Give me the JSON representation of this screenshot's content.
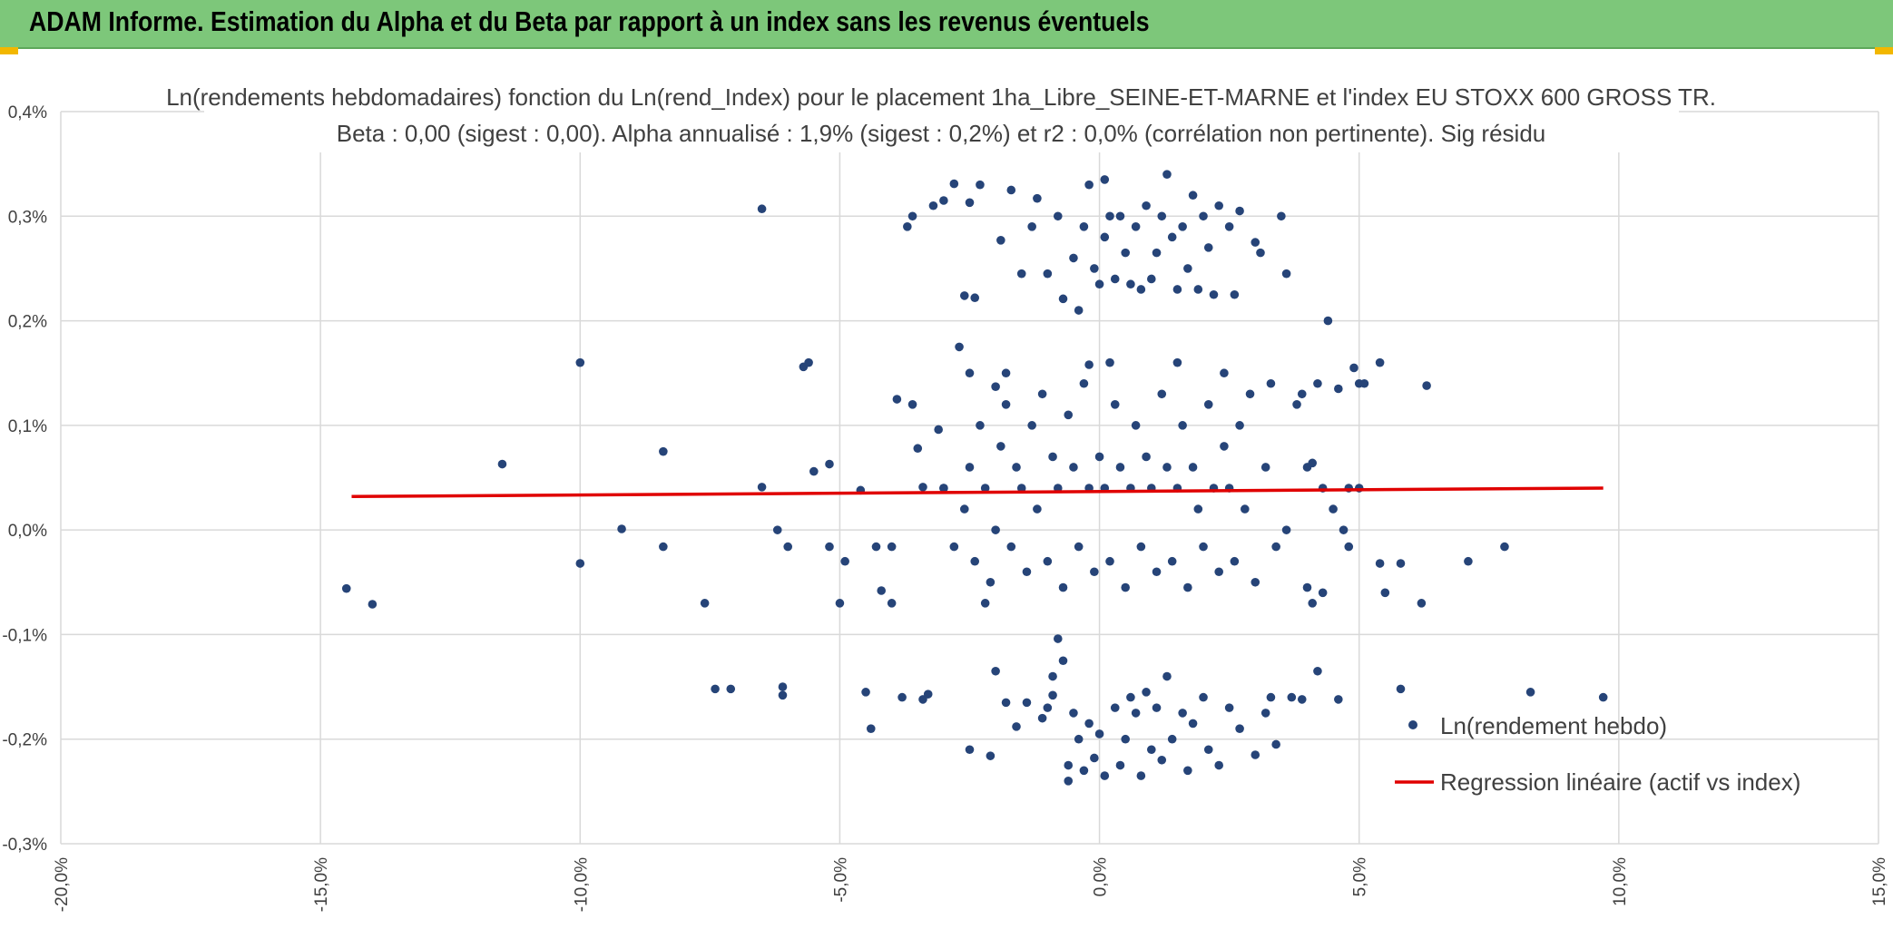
{
  "header": {
    "title": "ADAM Informe. Estimation du Alpha et du Beta par rapport à un index sans les revenus éventuels"
  },
  "chart_data": {
    "type": "scatter",
    "title": "Ln(rendements hebdomadaires) fonction du Ln(rend_Index) pour le placement 1ha_Libre_SEINE-ET-MARNE et l'index EU STOXX 600 GROSS TR.",
    "subtitle": "Beta : 0,00 (sigest : 0,00). Alpha annualisé : 1,9% (sigest : 0,2%) et r2 : 0,0% (corrélation non pertinente). Sig résidu",
    "xlim": [
      -0.2,
      0.15
    ],
    "ylim": [
      -0.003,
      0.004
    ],
    "x_ticks": [
      -0.2,
      -0.15,
      -0.1,
      -0.05,
      0.0,
      0.05,
      0.1,
      0.15
    ],
    "x_tick_labels": [
      "-20,0%",
      "-15,0%",
      "-10,0%",
      "-5,0%",
      "0,0%",
      "5,0%",
      "10,0%",
      "15,0%"
    ],
    "y_ticks": [
      0.004,
      0.003,
      0.002,
      0.001,
      0.0,
      -0.001,
      -0.002,
      -0.003
    ],
    "y_tick_labels": [
      "0,4%",
      "0,3%",
      "0,2%",
      "0,1%",
      "0,0%",
      "-0,1%",
      "-0,2%",
      "-0,3%"
    ],
    "grid": true,
    "legend_position": "bottom-right",
    "colors": {
      "points": "#264478",
      "regression": "#e00000",
      "header": "#7dc77a",
      "corner": "#f2b700"
    },
    "series": [
      {
        "name": "Ln(rendement hebdo)",
        "kind": "scatter",
        "points": [
          [
            -0.145,
            -0.00056
          ],
          [
            -0.14,
            -0.00071
          ],
          [
            -0.115,
            0.00063
          ],
          [
            -0.1,
            0.0016
          ],
          [
            -0.1,
            -0.00032
          ],
          [
            -0.092,
            1e-05
          ],
          [
            -0.084,
            0.00075
          ],
          [
            -0.084,
            -0.00016
          ],
          [
            -0.076,
            -0.0007
          ],
          [
            -0.074,
            -0.00152
          ],
          [
            -0.071,
            -0.00152
          ],
          [
            -0.065,
            0.00307
          ],
          [
            -0.065,
            0.00041
          ],
          [
            -0.062,
            0.0
          ],
          [
            -0.061,
            -0.0015
          ],
          [
            -0.061,
            -0.00158
          ],
          [
            -0.06,
            -0.00016
          ],
          [
            -0.057,
            0.00156
          ],
          [
            -0.056,
            0.0016
          ],
          [
            -0.055,
            0.00056
          ],
          [
            -0.052,
            0.00063
          ],
          [
            -0.052,
            -0.00016
          ],
          [
            -0.05,
            -0.0007
          ],
          [
            -0.049,
            -0.0003
          ],
          [
            -0.046,
            0.00038
          ],
          [
            -0.045,
            -0.00155
          ],
          [
            -0.044,
            -0.0019
          ],
          [
            -0.043,
            -0.00016
          ],
          [
            -0.042,
            -0.00058
          ],
          [
            -0.04,
            -0.0007
          ],
          [
            -0.04,
            -0.00016
          ],
          [
            -0.039,
            0.00125
          ],
          [
            -0.038,
            -0.0016
          ],
          [
            -0.037,
            0.0029
          ],
          [
            -0.036,
            0.003
          ],
          [
            -0.036,
            0.0012
          ],
          [
            -0.035,
            0.00078
          ],
          [
            -0.034,
            0.00041
          ],
          [
            -0.034,
            -0.00162
          ],
          [
            -0.033,
            -0.00157
          ],
          [
            -0.032,
            0.0031
          ],
          [
            -0.031,
            0.00096
          ],
          [
            -0.03,
            0.00315
          ],
          [
            -0.03,
            0.0004
          ],
          [
            -0.028,
            0.00331
          ],
          [
            -0.027,
            0.00175
          ],
          [
            -0.026,
            0.00224
          ],
          [
            -0.025,
            0.00313
          ],
          [
            -0.025,
            0.0015
          ],
          [
            -0.025,
            -0.0021
          ],
          [
            -0.024,
            0.00222
          ],
          [
            -0.023,
            0.0033
          ],
          [
            -0.022,
            -0.0007
          ],
          [
            -0.021,
            -0.00216
          ],
          [
            -0.02,
            0.00137
          ],
          [
            -0.02,
            -0.00135
          ],
          [
            -0.019,
            0.00277
          ],
          [
            -0.018,
            0.0015
          ],
          [
            -0.018,
            -0.00165
          ],
          [
            -0.017,
            0.00325
          ],
          [
            -0.016,
            -0.00188
          ],
          [
            -0.015,
            0.00245
          ],
          [
            -0.014,
            -0.00165
          ],
          [
            -0.013,
            0.0029
          ],
          [
            -0.012,
            0.00317
          ],
          [
            -0.011,
            -0.0018
          ],
          [
            -0.01,
            0.00245
          ],
          [
            -0.01,
            -0.0017
          ],
          [
            -0.009,
            -0.00158
          ],
          [
            -0.009,
            -0.0014
          ],
          [
            -0.008,
            0.003
          ],
          [
            -0.008,
            -0.00104
          ],
          [
            -0.007,
            0.00221
          ],
          [
            -0.007,
            -0.00125
          ],
          [
            -0.006,
            -0.0024
          ],
          [
            -0.006,
            -0.00225
          ],
          [
            -0.005,
            0.0026
          ],
          [
            -0.005,
            -0.00175
          ],
          [
            -0.004,
            0.0021
          ],
          [
            -0.004,
            -0.002
          ],
          [
            -0.003,
            0.0029
          ],
          [
            -0.003,
            -0.0023
          ],
          [
            -0.002,
            0.0033
          ],
          [
            -0.002,
            0.00158
          ],
          [
            -0.002,
            -0.00185
          ],
          [
            -0.001,
            0.0025
          ],
          [
            -0.001,
            -0.00218
          ],
          [
            0.0,
            0.00235
          ],
          [
            0.0,
            -0.00195
          ],
          [
            0.001,
            0.00335
          ],
          [
            0.001,
            0.0028
          ],
          [
            0.001,
            -0.00235
          ],
          [
            0.002,
            0.003
          ],
          [
            0.002,
            0.0016
          ],
          [
            0.003,
            0.0024
          ],
          [
            0.003,
            -0.0017
          ],
          [
            0.004,
            0.003
          ],
          [
            0.004,
            -0.00225
          ],
          [
            0.005,
            0.00265
          ],
          [
            0.005,
            -0.002
          ],
          [
            0.006,
            0.00235
          ],
          [
            0.006,
            -0.0016
          ],
          [
            0.007,
            0.0029
          ],
          [
            0.007,
            -0.00175
          ],
          [
            0.008,
            0.0023
          ],
          [
            0.008,
            -0.00235
          ],
          [
            0.009,
            0.0031
          ],
          [
            0.009,
            -0.00155
          ],
          [
            0.01,
            0.0024
          ],
          [
            0.01,
            -0.0021
          ],
          [
            0.011,
            0.00265
          ],
          [
            0.011,
            -0.0017
          ],
          [
            0.012,
            0.003
          ],
          [
            0.012,
            -0.0022
          ],
          [
            0.013,
            0.0034
          ],
          [
            0.013,
            -0.0014
          ],
          [
            0.014,
            0.0028
          ],
          [
            0.014,
            -0.002
          ],
          [
            0.015,
            0.0023
          ],
          [
            0.015,
            0.0016
          ],
          [
            0.016,
            0.0029
          ],
          [
            0.016,
            -0.00175
          ],
          [
            0.017,
            0.0025
          ],
          [
            0.017,
            -0.0023
          ],
          [
            0.018,
            0.0032
          ],
          [
            0.018,
            -0.00185
          ],
          [
            0.019,
            0.0023
          ],
          [
            0.02,
            0.003
          ],
          [
            0.02,
            -0.0016
          ],
          [
            0.021,
            0.0027
          ],
          [
            0.021,
            -0.0021
          ],
          [
            0.022,
            0.00225
          ],
          [
            0.023,
            0.0031
          ],
          [
            0.023,
            -0.00225
          ],
          [
            0.024,
            0.0015
          ],
          [
            0.025,
            0.0029
          ],
          [
            0.025,
            -0.0017
          ],
          [
            0.026,
            0.00225
          ],
          [
            0.027,
            0.00305
          ],
          [
            0.027,
            -0.0019
          ],
          [
            0.029,
            0.0013
          ],
          [
            0.03,
            0.00275
          ],
          [
            0.03,
            -0.00215
          ],
          [
            0.031,
            0.00265
          ],
          [
            0.032,
            -0.00175
          ],
          [
            0.033,
            0.0014
          ],
          [
            0.033,
            -0.0016
          ],
          [
            0.034,
            -0.00205
          ],
          [
            0.035,
            0.003
          ],
          [
            0.036,
            0.00245
          ],
          [
            0.036,
            0.0
          ],
          [
            0.037,
            -0.0016
          ],
          [
            0.038,
            0.0012
          ],
          [
            0.039,
            -0.00162
          ],
          [
            0.039,
            0.0013
          ],
          [
            0.04,
            0.0006
          ],
          [
            0.04,
            -0.00055
          ],
          [
            0.041,
            0.00064
          ],
          [
            0.041,
            -0.0007
          ],
          [
            0.042,
            0.0014
          ],
          [
            0.042,
            -0.00135
          ],
          [
            0.043,
            0.0004
          ],
          [
            0.043,
            -0.0006
          ],
          [
            0.044,
            0.002
          ],
          [
            0.045,
            0.0002
          ],
          [
            0.046,
            -0.00162
          ],
          [
            0.046,
            0.00135
          ],
          [
            0.047,
            0.0
          ],
          [
            0.048,
            0.0004
          ],
          [
            0.048,
            -0.00016
          ],
          [
            0.049,
            0.00155
          ],
          [
            0.05,
            0.0014
          ],
          [
            0.05,
            0.0004
          ],
          [
            0.051,
            0.0014
          ],
          [
            0.054,
            0.0016
          ],
          [
            0.054,
            -0.00032
          ],
          [
            0.055,
            -0.0006
          ],
          [
            0.058,
            -0.00032
          ],
          [
            0.058,
            -0.00152
          ],
          [
            0.062,
            -0.0007
          ],
          [
            0.063,
            0.00138
          ],
          [
            0.071,
            -0.0003
          ],
          [
            0.078,
            -0.00016
          ],
          [
            0.083,
            -0.00155
          ],
          [
            0.097,
            -0.0016
          ],
          [
            -0.03,
            0.0004
          ],
          [
            -0.028,
            -0.00016
          ],
          [
            -0.026,
            0.0002
          ],
          [
            -0.025,
            0.0006
          ],
          [
            -0.024,
            -0.0003
          ],
          [
            -0.023,
            0.001
          ],
          [
            -0.022,
            0.0004
          ],
          [
            -0.021,
            -0.0005
          ],
          [
            -0.02,
            0.0
          ],
          [
            -0.019,
            0.0008
          ],
          [
            -0.018,
            0.0012
          ],
          [
            -0.017,
            -0.00016
          ],
          [
            -0.016,
            0.0006
          ],
          [
            -0.015,
            0.0004
          ],
          [
            -0.014,
            -0.0004
          ],
          [
            -0.013,
            0.001
          ],
          [
            -0.012,
            0.0002
          ],
          [
            -0.011,
            0.0013
          ],
          [
            -0.01,
            -0.0003
          ],
          [
            -0.009,
            0.0007
          ],
          [
            -0.008,
            0.0004
          ],
          [
            -0.007,
            -0.00055
          ],
          [
            -0.006,
            0.0011
          ],
          [
            -0.005,
            0.0006
          ],
          [
            -0.004,
            -0.00016
          ],
          [
            -0.003,
            0.0014
          ],
          [
            -0.002,
            0.0004
          ],
          [
            -0.001,
            -0.0004
          ],
          [
            0.0,
            0.0007
          ],
          [
            0.001,
            0.0004
          ],
          [
            0.002,
            -0.0003
          ],
          [
            0.003,
            0.0012
          ],
          [
            0.004,
            0.0006
          ],
          [
            0.005,
            -0.00055
          ],
          [
            0.006,
            0.0004
          ],
          [
            0.007,
            0.001
          ],
          [
            0.008,
            -0.00016
          ],
          [
            0.009,
            0.0007
          ],
          [
            0.01,
            0.0004
          ],
          [
            0.011,
            -0.0004
          ],
          [
            0.012,
            0.0013
          ],
          [
            0.013,
            0.0006
          ],
          [
            0.014,
            -0.0003
          ],
          [
            0.015,
            0.0004
          ],
          [
            0.016,
            0.001
          ],
          [
            0.017,
            -0.00055
          ],
          [
            0.018,
            0.0006
          ],
          [
            0.019,
            0.0002
          ],
          [
            0.02,
            -0.00016
          ],
          [
            0.021,
            0.0012
          ],
          [
            0.022,
            0.0004
          ],
          [
            0.023,
            -0.0004
          ],
          [
            0.024,
            0.0008
          ],
          [
            0.025,
            0.0004
          ],
          [
            0.026,
            -0.0003
          ],
          [
            0.027,
            0.001
          ],
          [
            0.028,
            0.0002
          ],
          [
            0.03,
            -0.0005
          ],
          [
            0.032,
            0.0006
          ],
          [
            0.034,
            -0.00016
          ]
        ]
      },
      {
        "name": "Regression linéaire (actif vs index)",
        "kind": "line",
        "points": [
          [
            -0.144,
            0.00032
          ],
          [
            0.097,
            0.0004
          ]
        ]
      }
    ]
  }
}
